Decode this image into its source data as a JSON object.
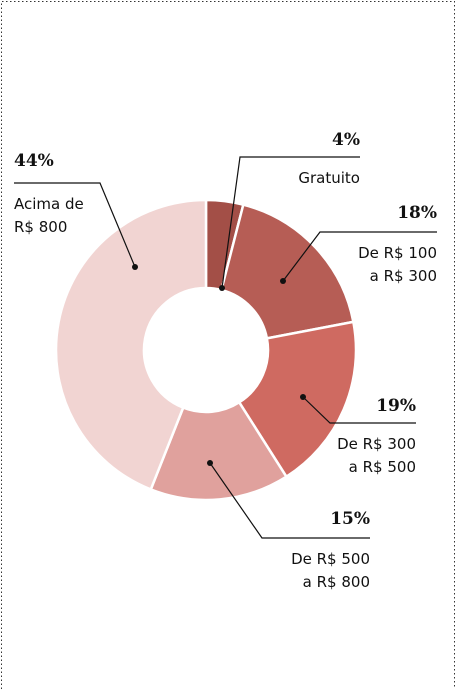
{
  "chart_data": {
    "type": "donut",
    "categories": [
      [
        "Gratuito"
      ],
      [
        "De R$ 100",
        "a R$ 300"
      ],
      [
        "De R$ 300",
        "a R$ 500"
      ],
      [
        "De R$ 500",
        "a R$ 800"
      ],
      [
        "Acima de",
        "R$ 800"
      ]
    ],
    "values": [
      4,
      18,
      19,
      15,
      44
    ],
    "value_labels": [
      "4%",
      "18%",
      "19%",
      "15%",
      "44%"
    ],
    "colors": [
      "#a34f47",
      "#b65d55",
      "#cf6a61",
      "#e0a19d",
      "#f1d4d2"
    ]
  }
}
